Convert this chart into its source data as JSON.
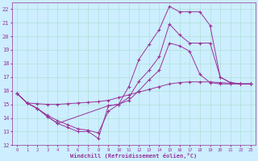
{
  "xlabel": "Windchill (Refroidissement éolien,°C)",
  "bg_color": "#cceeff",
  "line_color": "#993399",
  "grid_color": "#aaddcc",
  "xlim": [
    -0.5,
    23.5
  ],
  "ylim": [
    12,
    22.5
  ],
  "yticks": [
    12,
    13,
    14,
    15,
    16,
    17,
    18,
    19,
    20,
    21,
    22
  ],
  "xticks": [
    0,
    1,
    2,
    3,
    4,
    5,
    6,
    7,
    8,
    9,
    10,
    11,
    12,
    13,
    14,
    15,
    16,
    17,
    18,
    19,
    20,
    21,
    22,
    23
  ],
  "curve1_x": [
    0,
    1,
    2,
    3,
    4,
    5,
    6,
    7,
    8,
    9,
    10,
    11,
    12,
    13,
    14,
    15,
    16,
    17,
    18,
    19,
    20,
    21,
    22,
    23
  ],
  "curve1_y": [
    15.8,
    15.1,
    14.7,
    14.1,
    13.6,
    13.3,
    13.0,
    13.0,
    12.5,
    14.9,
    15.0,
    16.3,
    18.3,
    19.4,
    20.5,
    22.2,
    21.8,
    21.8,
    21.8,
    20.8,
    17.0,
    16.6,
    16.5,
    16.5
  ],
  "curve2_x": [
    0,
    1,
    2,
    3,
    4,
    5,
    6,
    7,
    8,
    9,
    10,
    11,
    12,
    13,
    14,
    15,
    16,
    17,
    18,
    19,
    20,
    21,
    22,
    23
  ],
  "curve2_y": [
    15.8,
    15.1,
    14.7,
    14.2,
    13.8,
    13.5,
    13.2,
    13.1,
    12.9,
    14.5,
    15.0,
    15.5,
    16.7,
    17.5,
    18.5,
    20.9,
    20.1,
    19.5,
    19.5,
    19.5,
    17.0,
    16.6,
    16.5,
    16.5
  ],
  "curve3_x": [
    0,
    1,
    2,
    3,
    4,
    5,
    6,
    7,
    8,
    9,
    10,
    11,
    12,
    13,
    14,
    15,
    16,
    17,
    18,
    19,
    20,
    21,
    22,
    23
  ],
  "curve3_y": [
    15.8,
    15.1,
    15.05,
    15.0,
    15.0,
    15.05,
    15.1,
    15.15,
    15.2,
    15.3,
    15.5,
    15.7,
    15.9,
    16.1,
    16.3,
    16.5,
    16.6,
    16.65,
    16.65,
    16.65,
    16.6,
    16.55,
    16.5,
    16.5
  ],
  "curve4_x": [
    0,
    1,
    2,
    3,
    4,
    9,
    10,
    11,
    12,
    13,
    14,
    15,
    16,
    17,
    18,
    19,
    20,
    21,
    22,
    23
  ],
  "curve4_y": [
    15.8,
    15.1,
    14.7,
    14.1,
    13.6,
    14.9,
    15.0,
    15.3,
    16.0,
    16.8,
    17.5,
    19.5,
    19.3,
    18.9,
    17.2,
    16.6,
    16.5,
    16.5,
    16.5,
    16.5
  ]
}
